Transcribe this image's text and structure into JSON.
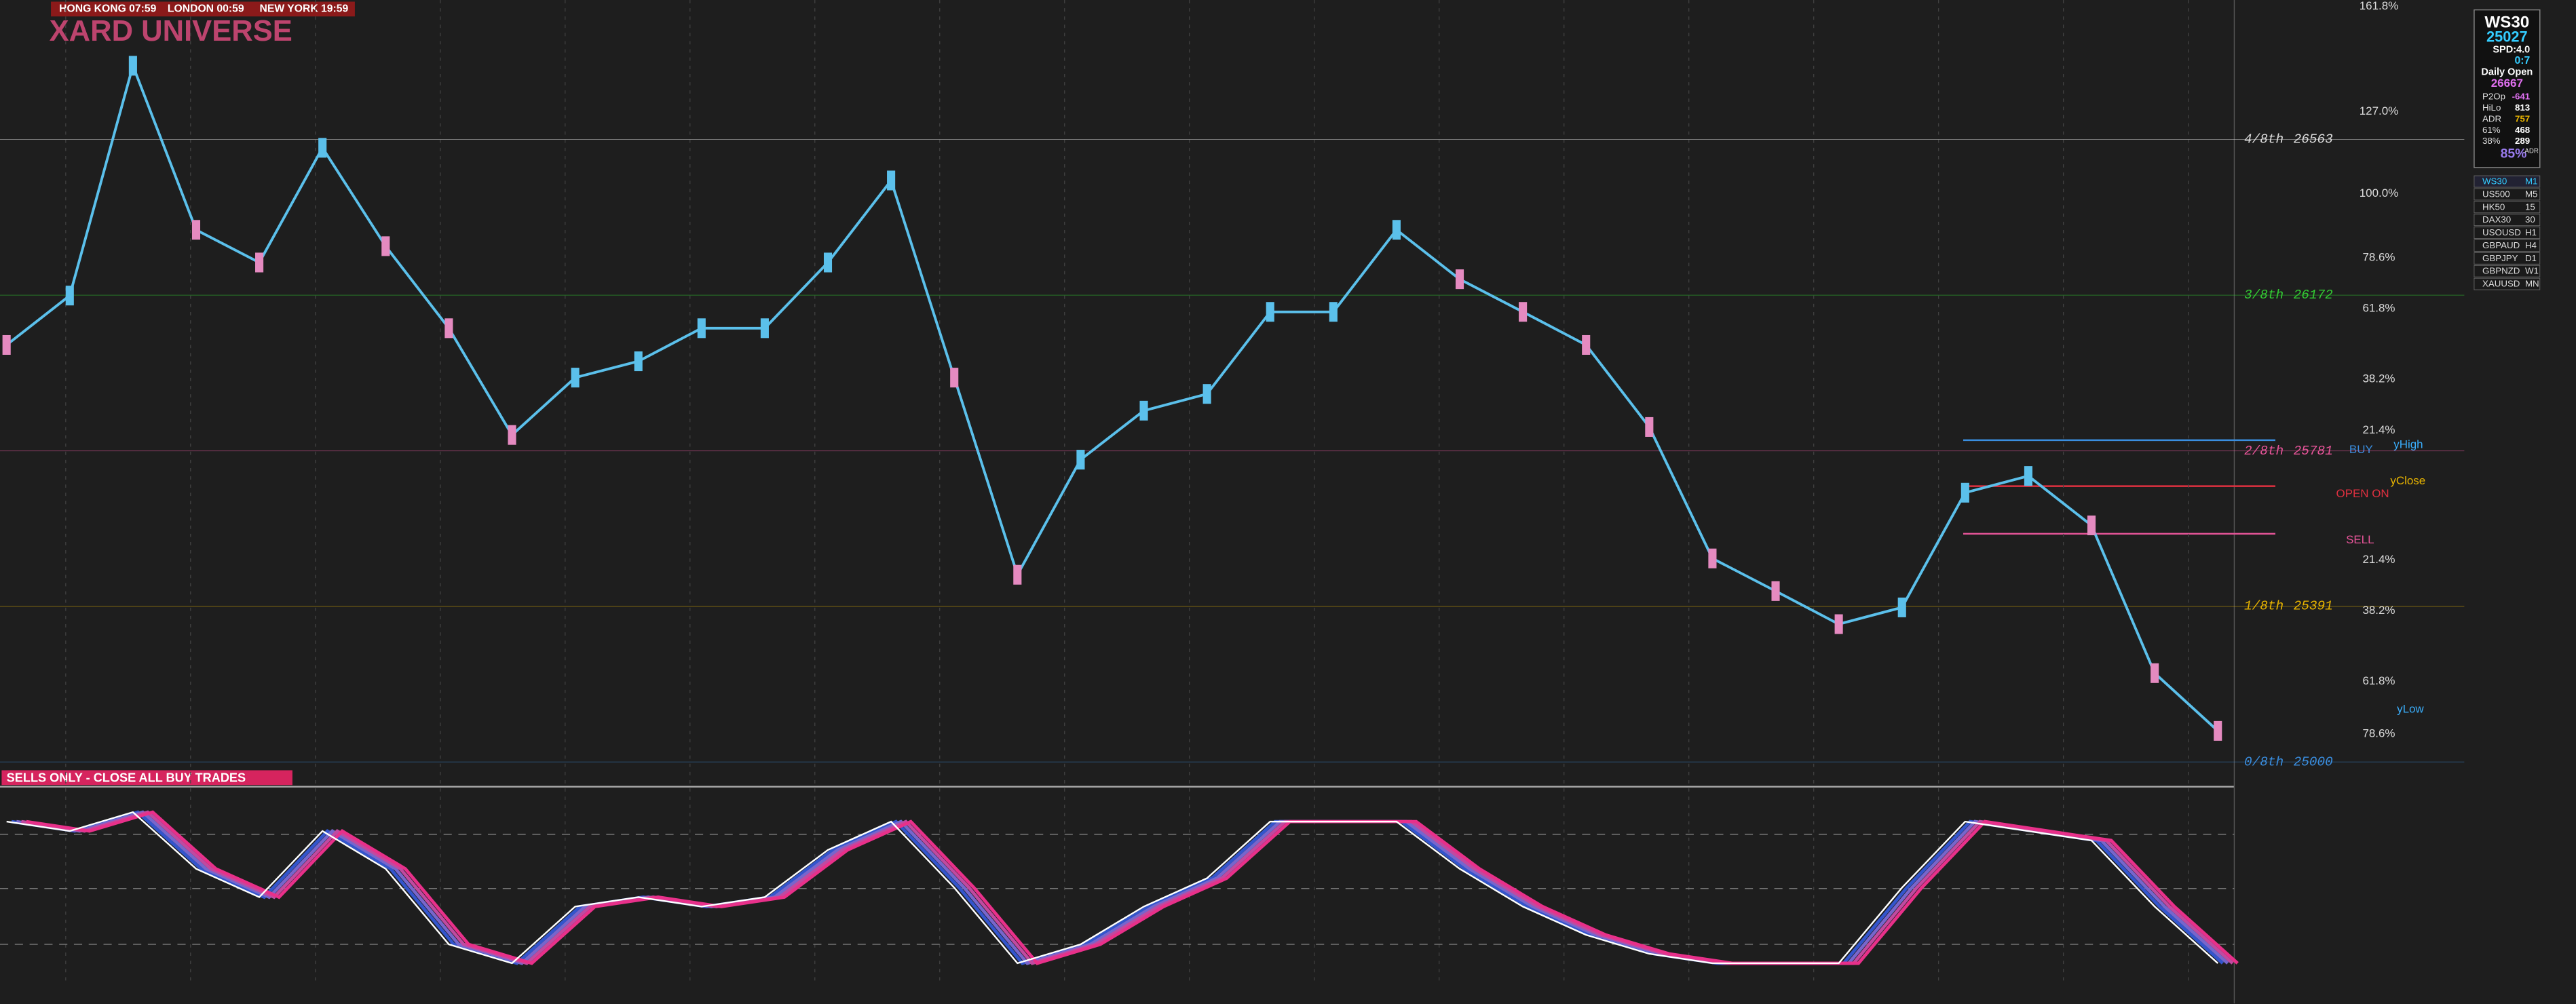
{
  "header": {
    "clocks": [
      "HONG KONG 07:59",
      "LONDON 00:59",
      "NEW YORK 19:59"
    ],
    "logo": "XARD UNIVERSE"
  },
  "banner": "SELLS ONLY - CLOSE ALL BUY TRADES",
  "price": {
    "ylim": [
      24942,
      26913
    ],
    "color": "#5bc0eb",
    "values": [
      26047,
      26171,
      26748,
      26336,
      26254,
      26542,
      26295,
      26089,
      25821,
      25965,
      26006,
      26089,
      26089,
      26254,
      26460,
      25965,
      25470,
      25759,
      25882,
      25924,
      26130,
      26130,
      26336,
      26212,
      26130,
      26047,
      25841,
      25511,
      25429,
      25346,
      25388,
      25676,
      25718,
      25594,
      25223,
      25078
    ]
  },
  "murrey": [
    {
      "name": "4/8th",
      "value": 26563,
      "color": "#dddddd"
    },
    {
      "name": "3/8th",
      "value": 26172,
      "color": "#33cc33"
    },
    {
      "name": "2/8th",
      "value": 25781,
      "color": "#e8559a"
    },
    {
      "name": "1/8th",
      "value": 25391,
      "color": "#e8b400"
    },
    {
      "name": "0/8th",
      "value": 25000,
      "color": "#3a8ee0"
    }
  ],
  "fib_labels": [
    "161.8%",
    "127.0%",
    "100.0%",
    "78.6%",
    "61.8%",
    "38.2%",
    "21.4%",
    "21.4%",
    "38.2%",
    "61.8%",
    "78.6%"
  ],
  "trade_labels": {
    "buy": "BUY",
    "y_high": "yHigh",
    "y_close": "yClose",
    "open_on": "OPEN ON",
    "sell": "SELL",
    "y_low": "yLow"
  },
  "oscillator": {
    "ylim": [
      0,
      100
    ],
    "values": [
      85,
      80,
      90,
      60,
      45,
      80,
      60,
      20,
      10,
      40,
      45,
      40,
      45,
      70,
      85,
      50,
      10,
      20,
      40,
      55,
      85,
      85,
      85,
      60,
      40,
      25,
      15,
      10,
      10,
      10,
      50,
      85,
      80,
      75,
      40,
      10
    ]
  },
  "info_panel": {
    "symbol": "WS30",
    "price": "25027",
    "spread": "SPD:4.0",
    "timer": "0:7",
    "daily_open_label": "Daily Open",
    "daily_open": "26667",
    "rows": [
      [
        "P2Op",
        "-641"
      ],
      [
        "HiLo",
        "813"
      ],
      [
        "ADR",
        "757"
      ],
      [
        "61%",
        "468"
      ],
      [
        "38%",
        "289"
      ]
    ],
    "adr_pct": "85%",
    "adr_tag": "ADR"
  },
  "symbols": [
    [
      "WS30",
      "M1"
    ],
    [
      "US500",
      "M5"
    ],
    [
      "HK50",
      "15"
    ],
    [
      "DAX30",
      "30"
    ],
    [
      "USOUSD",
      "H1"
    ],
    [
      "GBPAUD",
      "H4"
    ],
    [
      "GBPJPY",
      "D1"
    ],
    [
      "GBPNZD",
      "W1"
    ],
    [
      "XAUUSD",
      "MN"
    ]
  ]
}
